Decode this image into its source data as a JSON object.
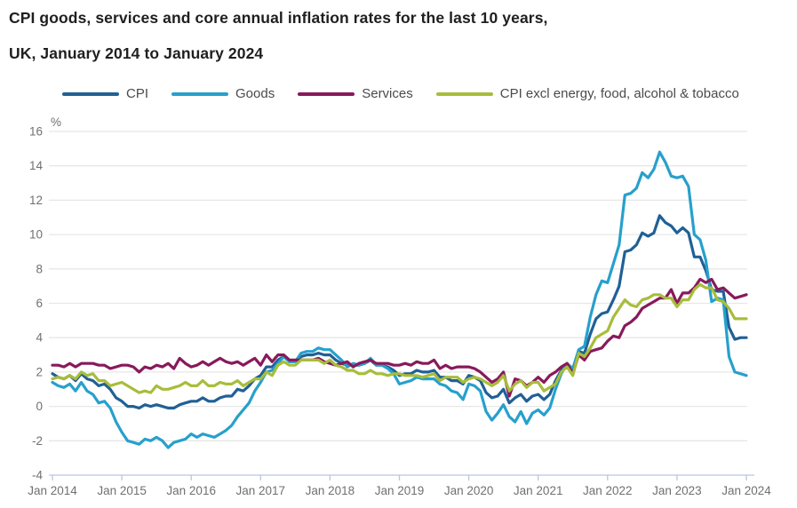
{
  "title": {
    "line1": "CPI goods, services and core annual inflation rates for the last 10 years,",
    "line2": "UK, January 2014 to January 2024"
  },
  "colors": {
    "background": "#ffffff",
    "title_text": "#1f1f1f",
    "legend_text": "#4a4a4d",
    "axis_text": "#707071",
    "gridline": "#e7e7e8",
    "axis_line": "#b8c6e2"
  },
  "chart_data": {
    "type": "line",
    "title": "CPI goods, services and core annual inflation rates for the last 10 years,",
    "subtitle": "UK, January 2014 to January 2024",
    "unit_label": "%",
    "ylim": [
      -4,
      16
    ],
    "ytick_step": 2,
    "grid": "horizontal",
    "legend_position": "top",
    "x_start": "Jan 2014",
    "x_end": "Jan 2024",
    "x_frequency": "monthly",
    "points_per_tick": 12,
    "x_tick_labels": [
      "Jan 2014",
      "Jan 2015",
      "Jan 2016",
      "Jan 2017",
      "Jan 2018",
      "Jan 2019",
      "Jan 2020",
      "Jan 2021",
      "Jan 2022",
      "Jan 2023",
      "Jan 2024"
    ],
    "series": [
      {
        "name": "CPI",
        "color": "#206095",
        "values": [
          1.9,
          1.7,
          1.6,
          1.8,
          1.5,
          1.9,
          1.6,
          1.5,
          1.2,
          1.3,
          1.0,
          0.5,
          0.3,
          0.0,
          0.0,
          -0.1,
          0.1,
          0.0,
          0.1,
          0.0,
          -0.1,
          -0.1,
          0.1,
          0.2,
          0.3,
          0.3,
          0.5,
          0.3,
          0.3,
          0.5,
          0.6,
          0.6,
          1.0,
          0.9,
          1.2,
          1.6,
          1.8,
          2.3,
          2.3,
          2.7,
          2.9,
          2.6,
          2.6,
          2.9,
          3.0,
          3.0,
          3.1,
          3.0,
          3.0,
          2.7,
          2.5,
          2.4,
          2.4,
          2.4,
          2.5,
          2.7,
          2.4,
          2.4,
          2.3,
          2.1,
          1.8,
          1.9,
          1.9,
          2.1,
          2.0,
          2.0,
          2.1,
          1.7,
          1.7,
          1.5,
          1.5,
          1.3,
          1.8,
          1.7,
          1.5,
          0.8,
          0.5,
          0.6,
          1.0,
          0.2,
          0.5,
          0.7,
          0.3,
          0.6,
          0.7,
          0.4,
          0.7,
          1.5,
          2.1,
          2.5,
          2.0,
          3.2,
          3.1,
          4.2,
          5.1,
          5.4,
          5.5,
          6.2,
          7.0,
          9.0,
          9.1,
          9.4,
          10.1,
          9.9,
          10.1,
          11.1,
          10.7,
          10.5,
          10.1,
          10.4,
          10.1,
          8.7,
          8.7,
          7.9,
          6.8,
          6.7,
          6.7,
          4.6,
          3.9,
          4.0,
          4.0
        ]
      },
      {
        "name": "Goods",
        "color": "#27A0CC",
        "values": [
          1.4,
          1.2,
          1.1,
          1.3,
          0.9,
          1.4,
          0.9,
          0.7,
          0.2,
          0.3,
          -0.1,
          -0.9,
          -1.5,
          -2.0,
          -2.1,
          -2.2,
          -1.9,
          -2.0,
          -1.8,
          -2.0,
          -2.4,
          -2.1,
          -2.0,
          -1.9,
          -1.6,
          -1.8,
          -1.6,
          -1.7,
          -1.8,
          -1.6,
          -1.4,
          -1.1,
          -0.6,
          -0.2,
          0.2,
          0.9,
          1.4,
          2.0,
          2.1,
          2.5,
          2.9,
          2.6,
          2.6,
          3.1,
          3.2,
          3.2,
          3.4,
          3.3,
          3.3,
          3.0,
          2.7,
          2.3,
          2.5,
          2.4,
          2.5,
          2.8,
          2.4,
          2.4,
          2.2,
          1.9,
          1.3,
          1.4,
          1.5,
          1.7,
          1.6,
          1.6,
          1.6,
          1.3,
          1.2,
          0.9,
          0.8,
          0.4,
          1.3,
          1.2,
          0.9,
          -0.3,
          -0.8,
          -0.4,
          0.1,
          -0.6,
          -0.9,
          -0.3,
          -1.0,
          -0.4,
          -0.2,
          -0.5,
          -0.1,
          1.0,
          1.9,
          2.5,
          2.2,
          3.3,
          3.5,
          5.2,
          6.5,
          7.3,
          7.2,
          8.3,
          9.4,
          12.3,
          12.4,
          12.7,
          13.6,
          13.3,
          13.8,
          14.8,
          14.2,
          13.4,
          13.3,
          13.4,
          12.8,
          10.0,
          9.7,
          8.5,
          6.1,
          6.3,
          6.2,
          2.9,
          2.0,
          1.9,
          1.8
        ]
      },
      {
        "name": "Services",
        "color": "#871A5B",
        "values": [
          2.4,
          2.4,
          2.3,
          2.5,
          2.3,
          2.5,
          2.5,
          2.5,
          2.4,
          2.4,
          2.2,
          2.3,
          2.4,
          2.4,
          2.3,
          2.0,
          2.3,
          2.2,
          2.4,
          2.3,
          2.5,
          2.2,
          2.8,
          2.5,
          2.3,
          2.4,
          2.6,
          2.4,
          2.6,
          2.8,
          2.6,
          2.5,
          2.6,
          2.4,
          2.6,
          2.8,
          2.4,
          3.0,
          2.6,
          3.0,
          3.0,
          2.7,
          2.7,
          2.7,
          2.7,
          2.7,
          2.8,
          2.6,
          2.5,
          2.4,
          2.5,
          2.6,
          2.3,
          2.5,
          2.6,
          2.7,
          2.5,
          2.5,
          2.5,
          2.4,
          2.4,
          2.5,
          2.4,
          2.6,
          2.5,
          2.5,
          2.7,
          2.2,
          2.4,
          2.2,
          2.3,
          2.3,
          2.3,
          2.2,
          2.0,
          1.7,
          1.4,
          1.6,
          2.0,
          0.6,
          1.6,
          1.5,
          1.2,
          1.4,
          1.7,
          1.4,
          1.8,
          2.0,
          2.3,
          2.5,
          1.9,
          3.0,
          2.7,
          3.2,
          3.3,
          3.4,
          3.8,
          4.1,
          4.0,
          4.7,
          4.9,
          5.2,
          5.7,
          5.9,
          6.1,
          6.3,
          6.3,
          6.8,
          6.0,
          6.6,
          6.6,
          6.9,
          7.4,
          7.2,
          7.4,
          6.8,
          6.9,
          6.6,
          6.3,
          6.4,
          6.5
        ]
      },
      {
        "name": "CPI excl energy, food, alcohol & tobacco",
        "color": "#A8BD3A",
        "values": [
          1.6,
          1.7,
          1.6,
          1.8,
          1.6,
          2.0,
          1.8,
          1.9,
          1.5,
          1.5,
          1.2,
          1.3,
          1.4,
          1.2,
          1.0,
          0.8,
          0.9,
          0.8,
          1.2,
          1.0,
          1.0,
          1.1,
          1.2,
          1.4,
          1.2,
          1.2,
          1.5,
          1.2,
          1.2,
          1.4,
          1.3,
          1.3,
          1.5,
          1.2,
          1.4,
          1.6,
          1.6,
          2.0,
          1.8,
          2.4,
          2.6,
          2.4,
          2.4,
          2.7,
          2.7,
          2.7,
          2.7,
          2.5,
          2.7,
          2.4,
          2.3,
          2.1,
          2.1,
          1.9,
          1.9,
          2.1,
          1.9,
          1.9,
          1.8,
          1.9,
          1.9,
          1.8,
          1.8,
          1.8,
          1.7,
          1.8,
          1.9,
          1.5,
          1.7,
          1.7,
          1.7,
          1.4,
          1.6,
          1.7,
          1.6,
          1.4,
          1.2,
          1.4,
          1.8,
          0.9,
          1.3,
          1.5,
          1.1,
          1.4,
          1.4,
          0.9,
          1.1,
          1.3,
          2.0,
          2.3,
          1.8,
          3.1,
          2.9,
          3.4,
          4.0,
          4.2,
          4.4,
          5.2,
          5.7,
          6.2,
          5.9,
          5.8,
          6.2,
          6.3,
          6.5,
          6.5,
          6.3,
          6.3,
          5.8,
          6.2,
          6.2,
          6.8,
          7.1,
          6.9,
          6.9,
          6.2,
          6.1,
          5.7,
          5.1,
          5.1,
          5.1
        ]
      }
    ]
  }
}
